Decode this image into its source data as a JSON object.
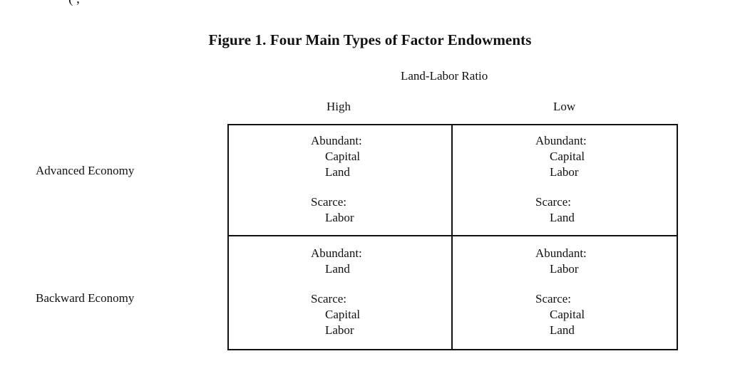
{
  "top_fragment": "( ,",
  "title": "Figure 1. Four Main Types of Factor Endowments",
  "column_axis_label": "Land-Labor Ratio",
  "columns": [
    "High",
    "Low"
  ],
  "rows": [
    "Advanced Economy",
    "Backward Economy"
  ],
  "cells": {
    "advanced_high": {
      "abundant_label": "Abundant:",
      "abundant": [
        "Capital",
        "Land"
      ],
      "scarce_label": "Scarce:",
      "scarce": [
        "Labor"
      ]
    },
    "advanced_low": {
      "abundant_label": "Abundant:",
      "abundant": [
        "Capital",
        "Labor"
      ],
      "scarce_label": "Scarce:",
      "scarce": [
        "Land"
      ]
    },
    "backward_high": {
      "abundant_label": "Abundant:",
      "abundant": [
        "Land"
      ],
      "scarce_label": "Scarce:",
      "scarce": [
        "Capital",
        "Labor"
      ]
    },
    "backward_low": {
      "abundant_label": "Abundant:",
      "abundant": [
        "Labor"
      ],
      "scarce_label": "Scarce:",
      "scarce": [
        "Capital",
        "Land"
      ]
    }
  }
}
